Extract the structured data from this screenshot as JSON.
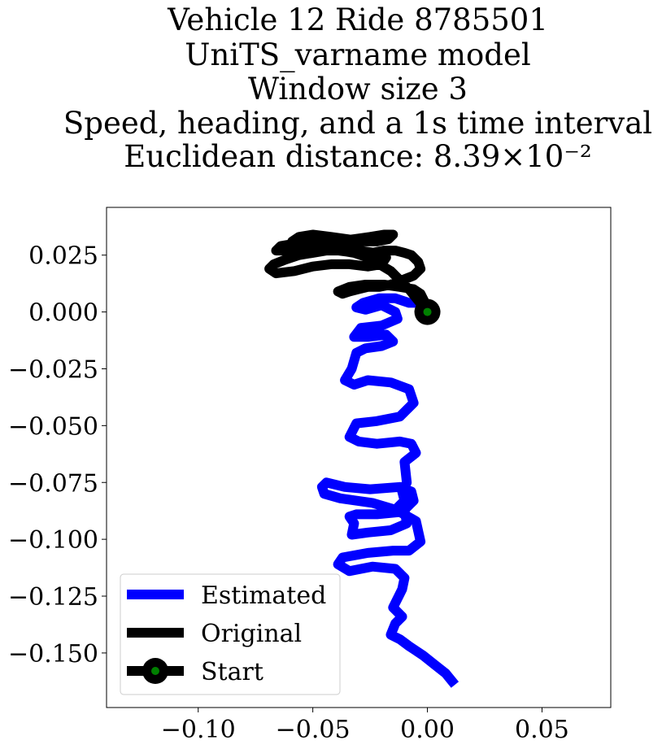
{
  "chart_data": {
    "type": "line",
    "title_lines": [
      "Vehicle 12 Ride 8785501",
      "UniTS_varname model",
      "Window size 3",
      "Speed, heading, and a 1s time interval",
      "Euclidean distance: 8.39×10⁻²"
    ],
    "xlabel": "",
    "ylabel": "",
    "xlim": [
      -0.14,
      0.08
    ],
    "ylim": [
      -0.174,
      0.046
    ],
    "x_ticks": [
      -0.1,
      -0.05,
      0.0,
      0.05
    ],
    "x_tick_labels": [
      "−0.10",
      "−0.05",
      "0.00",
      "0.05"
    ],
    "y_ticks": [
      0.025,
      0.0,
      -0.025,
      -0.05,
      -0.075,
      -0.1,
      -0.125,
      -0.15
    ],
    "y_tick_labels": [
      "0.025",
      "0.000",
      "−0.025",
      "−0.050",
      "−0.075",
      "−0.100",
      "−0.125",
      "−0.150"
    ],
    "grid": false,
    "legend_position": "lower-left",
    "series": [
      {
        "name": "Estimated",
        "color": "#0000ff",
        "x": [
          0.0,
          -0.003,
          -0.008,
          -0.014,
          -0.021,
          -0.028,
          -0.031,
          -0.027,
          -0.02,
          -0.014,
          -0.013,
          -0.02,
          -0.029,
          -0.032,
          -0.026,
          -0.018,
          -0.015,
          -0.02,
          -0.027,
          -0.031,
          -0.033,
          -0.036,
          -0.032,
          -0.026,
          -0.016,
          -0.008,
          -0.006,
          -0.012,
          -0.022,
          -0.031,
          -0.033,
          -0.034,
          -0.03,
          -0.022,
          -0.012,
          -0.007,
          -0.005,
          -0.01,
          -0.009,
          -0.011,
          -0.01,
          -0.014,
          -0.024,
          -0.038,
          -0.045,
          -0.046,
          -0.044,
          -0.036,
          -0.025,
          -0.012,
          -0.007,
          -0.006,
          -0.01,
          -0.009,
          -0.016,
          -0.026,
          -0.033,
          -0.032,
          -0.034,
          -0.031,
          -0.022,
          -0.012,
          -0.005,
          -0.003,
          -0.008,
          -0.015,
          -0.026,
          -0.037,
          -0.039,
          -0.034,
          -0.024,
          -0.014,
          -0.01,
          -0.011,
          -0.013,
          -0.015,
          -0.011,
          -0.014,
          -0.016,
          -0.012,
          -0.008,
          -0.002,
          0.003,
          0.008,
          0.012
        ],
        "y": [
          0.0,
          0.004,
          0.004,
          0.006,
          0.006,
          0.004,
          0.002,
          0.001,
          0.003,
          0.0,
          -0.003,
          -0.006,
          -0.007,
          -0.011,
          -0.011,
          -0.01,
          -0.013,
          -0.015,
          -0.016,
          -0.018,
          -0.025,
          -0.03,
          -0.032,
          -0.03,
          -0.031,
          -0.034,
          -0.04,
          -0.046,
          -0.048,
          -0.049,
          -0.053,
          -0.055,
          -0.057,
          -0.058,
          -0.057,
          -0.058,
          -0.062,
          -0.066,
          -0.075,
          -0.079,
          -0.083,
          -0.087,
          -0.084,
          -0.082,
          -0.08,
          -0.077,
          -0.075,
          -0.077,
          -0.078,
          -0.077,
          -0.079,
          -0.083,
          -0.087,
          -0.093,
          -0.096,
          -0.097,
          -0.098,
          -0.093,
          -0.09,
          -0.089,
          -0.089,
          -0.088,
          -0.092,
          -0.101,
          -0.105,
          -0.105,
          -0.106,
          -0.108,
          -0.111,
          -0.114,
          -0.112,
          -0.113,
          -0.117,
          -0.122,
          -0.126,
          -0.13,
          -0.134,
          -0.137,
          -0.142,
          -0.144,
          -0.147,
          -0.151,
          -0.155,
          -0.159,
          -0.164
        ]
      },
      {
        "name": "Original",
        "color": "#000000",
        "x": [
          0.0,
          -0.004,
          -0.008,
          -0.012,
          -0.016,
          -0.021,
          -0.026,
          -0.032,
          -0.038,
          -0.044,
          -0.05,
          -0.056,
          -0.062,
          -0.067,
          -0.069,
          -0.066,
          -0.058,
          -0.05,
          -0.042,
          -0.034,
          -0.026,
          -0.02,
          -0.018,
          -0.023,
          -0.03,
          -0.037,
          -0.044,
          -0.051,
          -0.058,
          -0.064,
          -0.066,
          -0.062,
          -0.055,
          -0.048,
          -0.04,
          -0.032,
          -0.025,
          -0.019,
          -0.015,
          -0.017,
          -0.022,
          -0.028,
          -0.035,
          -0.042,
          -0.05,
          -0.056,
          -0.059,
          -0.055,
          -0.047,
          -0.039,
          -0.031,
          -0.024,
          -0.019,
          -0.014,
          -0.01,
          -0.007,
          -0.004,
          -0.003,
          -0.006,
          -0.011,
          -0.016,
          -0.021,
          -0.026,
          -0.03,
          -0.034,
          -0.037,
          -0.039,
          -0.034,
          -0.027,
          -0.019,
          -0.012,
          -0.006,
          -0.003,
          -0.001,
          0.0
        ],
        "y": [
          0.0,
          0.005,
          0.01,
          0.014,
          0.018,
          0.021,
          0.024,
          0.026,
          0.027,
          0.027,
          0.026,
          0.025,
          0.023,
          0.021,
          0.019,
          0.017,
          0.018,
          0.02,
          0.021,
          0.021,
          0.02,
          0.021,
          0.024,
          0.026,
          0.027,
          0.028,
          0.029,
          0.03,
          0.03,
          0.029,
          0.027,
          0.027,
          0.028,
          0.03,
          0.031,
          0.032,
          0.033,
          0.034,
          0.034,
          0.032,
          0.031,
          0.031,
          0.032,
          0.033,
          0.034,
          0.033,
          0.031,
          0.029,
          0.028,
          0.027,
          0.026,
          0.026,
          0.027,
          0.027,
          0.026,
          0.025,
          0.022,
          0.019,
          0.016,
          0.014,
          0.012,
          0.011,
          0.011,
          0.01,
          0.009,
          0.008,
          0.009,
          0.011,
          0.012,
          0.012,
          0.011,
          0.01,
          0.008,
          0.004,
          0.0
        ]
      },
      {
        "name": "Start",
        "color": "#000000",
        "marker_color": "#008000",
        "x": [
          0.0
        ],
        "y": [
          0.0
        ]
      }
    ]
  }
}
